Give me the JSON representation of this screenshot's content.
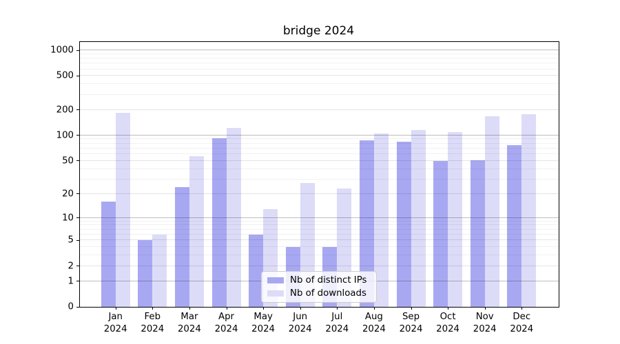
{
  "chart_data": {
    "type": "bar",
    "title": "bridge 2024",
    "x_tick_labels": [
      "Jan\n2024",
      "Feb\n2024",
      "Mar\n2024",
      "Apr\n2024",
      "May\n2024",
      "Jun\n2024",
      "Jul\n2024",
      "Aug\n2024",
      "Sep\n2024",
      "Oct\n2024",
      "Nov\n2024",
      "Dec\n2024"
    ],
    "series": [
      {
        "name": "Nb of distinct IPs",
        "color": "#a8a8f2",
        "values": [
          16,
          5,
          24,
          92,
          6,
          4,
          4,
          88,
          84,
          50,
          51,
          77
        ]
      },
      {
        "name": "Nb of downloads",
        "color": "#dcdcf8",
        "values": [
          186,
          6,
          57,
          122,
          13,
          27,
          23,
          106,
          116,
          110,
          167,
          177
        ]
      }
    ],
    "yscale": "log10(value+1)",
    "yticks": [
      0,
      1,
      2,
      5,
      10,
      20,
      50,
      100,
      200,
      500,
      1000
    ],
    "yticks_minor": [
      3,
      4,
      6,
      7,
      8,
      9,
      30,
      40,
      60,
      70,
      80,
      90,
      300,
      400,
      600,
      700,
      800,
      900
    ],
    "ylim": [
      0,
      1250
    ],
    "grid": true,
    "legend_position": "lower-center",
    "background": "#ffffff",
    "spine_color": "#000000"
  }
}
